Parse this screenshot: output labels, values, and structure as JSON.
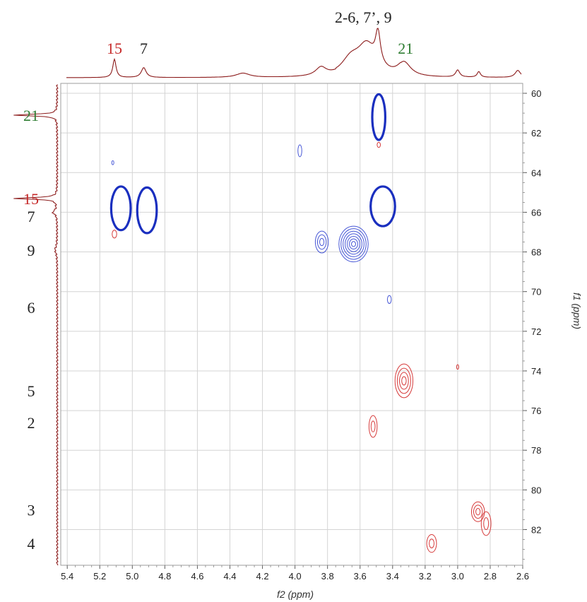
{
  "chart_data": {
    "type": "heatmap",
    "title": "",
    "xlabel": "f2 (ppm)",
    "ylabel": "f1 (ppm)",
    "xlim": [
      5.44,
      2.6
    ],
    "ylim": [
      59.5,
      83.8
    ],
    "x_ticks": [
      "5.4",
      "5.2",
      "5.0",
      "4.8",
      "4.6",
      "4.4",
      "4.2",
      "4.0",
      "3.8",
      "3.6",
      "3.4",
      "3.2",
      "3.0",
      "2.8",
      "2.6"
    ],
    "y_ticks": [
      "60",
      "62",
      "64",
      "66",
      "68",
      "70",
      "72",
      "74",
      "76",
      "78",
      "80",
      "82"
    ],
    "grid": true,
    "top_spectrum_labels": [
      {
        "text": "15",
        "x": 5.11,
        "color": "#c62828"
      },
      {
        "text": "7",
        "x": 4.93,
        "color": "#222222"
      },
      {
        "text": "2-6, 7’, 9",
        "x": 3.58,
        "color": "#222222"
      },
      {
        "text": "21",
        "x": 3.32,
        "color": "#2e7d32"
      }
    ],
    "left_spectrum_labels": [
      {
        "text": "21",
        "y": 61.1,
        "color": "#2e7d32"
      },
      {
        "text": "15",
        "y": 65.3,
        "color": "#c62828"
      },
      {
        "text": "7",
        "y": 66.2,
        "color": "#222222"
      },
      {
        "text": "9",
        "y": 67.9,
        "color": "#222222"
      },
      {
        "text": "6",
        "y": 70.8,
        "color": "#222222"
      },
      {
        "text": "5",
        "y": 75.0,
        "color": "#222222"
      },
      {
        "text": "2",
        "y": 76.6,
        "color": "#222222"
      },
      {
        "text": "3",
        "y": 81.0,
        "color": "#222222"
      },
      {
        "text": "4",
        "y": 82.7,
        "color": "#222222"
      }
    ],
    "series": [
      {
        "name": "",
        "color": "#1a2fbf",
        "style": "bold",
        "peaks": [
          {
            "x": 3.485,
            "y": 61.2,
            "rx": 0.04,
            "ry": 1.15
          },
          {
            "x": 3.46,
            "y": 65.7,
            "rx": 0.075,
            "ry": 1.0
          },
          {
            "x": 5.07,
            "y": 65.8,
            "rx": 0.06,
            "ry": 1.1
          },
          {
            "x": 4.91,
            "y": 65.9,
            "rx": 0.06,
            "ry": 1.15
          }
        ]
      },
      {
        "name": "",
        "color": "#4757d6",
        "style": "multi",
        "peaks": [
          {
            "x": 3.97,
            "y": 62.9,
            "rx": 0.012,
            "ry": 0.3
          },
          {
            "x": 3.835,
            "y": 67.5,
            "rx": 0.04,
            "ry": 0.55
          },
          {
            "x": 3.64,
            "y": 67.6,
            "rx": 0.09,
            "ry": 0.9
          },
          {
            "x": 3.42,
            "y": 70.4,
            "rx": 0.012,
            "ry": 0.2
          },
          {
            "x": 5.12,
            "y": 63.5,
            "rx": 0.003,
            "ry": 0.1
          }
        ]
      },
      {
        "name": "",
        "color": "#d63a3a",
        "style": "multi",
        "peaks": [
          {
            "x": 5.11,
            "y": 67.1,
            "rx": 0.014,
            "ry": 0.2
          },
          {
            "x": 3.485,
            "y": 62.6,
            "rx": 0.01,
            "ry": 0.13
          },
          {
            "x": 3.33,
            "y": 74.5,
            "rx": 0.055,
            "ry": 0.85
          },
          {
            "x": 3.52,
            "y": 76.8,
            "rx": 0.025,
            "ry": 0.55
          },
          {
            "x": 3.0,
            "y": 73.8,
            "rx": 0.004,
            "ry": 0.12
          },
          {
            "x": 2.875,
            "y": 81.1,
            "rx": 0.04,
            "ry": 0.5
          },
          {
            "x": 2.825,
            "y": 81.7,
            "rx": 0.03,
            "ry": 0.6
          },
          {
            "x": 3.16,
            "y": 82.7,
            "rx": 0.03,
            "ry": 0.45
          }
        ]
      }
    ]
  }
}
